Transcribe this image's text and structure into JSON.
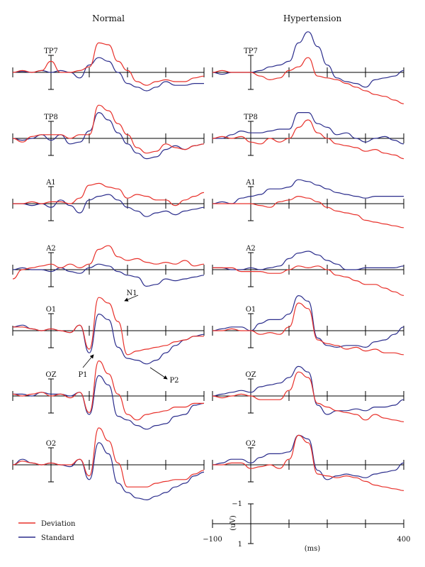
{
  "chart_data": {
    "type": "line",
    "panels": [
      {
        "title": "Normal"
      },
      {
        "title": "Hypertension"
      }
    ],
    "channels": [
      "TP7",
      "TP8",
      "A1",
      "A2",
      "O1",
      "OZ",
      "O2"
    ],
    "legend": {
      "position": "bottom-left",
      "entries": [
        {
          "label": "Deviation",
          "color": "#e8302a"
        },
        {
          "label": "Standard",
          "color": "#2b2d8c"
        }
      ]
    },
    "peak_annotations": [
      "N1",
      "P1",
      "P2"
    ],
    "scale_bar": {
      "xlabel": "(ms)",
      "ylabel": "(uV)",
      "x_min_label": "−100",
      "x_max_label": "400",
      "y_top_label": "−1",
      "y_bottom_label": "1",
      "xlim": [
        -100,
        400
      ],
      "ylim": [
        -1,
        1
      ]
    },
    "time_ms": [
      -100,
      -75,
      -50,
      -25,
      0,
      25,
      50,
      75,
      100,
      125,
      150,
      175,
      200,
      225,
      250,
      275,
      300,
      325,
      350,
      375,
      400
    ],
    "series": {
      "Normal": {
        "TP7": {
          "Deviation": [
            0,
            0.1,
            0,
            0.1,
            0.6,
            0,
            0,
            0.1,
            0.3,
            1.6,
            1.5,
            0.6,
            0.1,
            -0.5,
            -0.7,
            -0.5,
            -0.4,
            -0.5,
            -0.5,
            -0.3,
            -0.2
          ],
          "Standard": [
            0,
            0.05,
            0,
            0.1,
            0,
            0.1,
            0,
            -0.3,
            0.4,
            0.8,
            0.6,
            0,
            -0.6,
            -0.8,
            -1.0,
            -0.8,
            -0.5,
            -0.7,
            -0.7,
            -0.6,
            -0.6
          ]
        },
        "TP8": {
          "Deviation": [
            0,
            -0.2,
            0.1,
            0.2,
            0.2,
            0.2,
            0,
            0.2,
            0.2,
            1.8,
            1.5,
            0.8,
            0.2,
            -0.5,
            -0.8,
            -0.7,
            -0.3,
            -0.5,
            -0.6,
            -0.4,
            -0.3
          ],
          "Standard": [
            0,
            -0.1,
            0,
            0.2,
            -0.1,
            0.2,
            -0.3,
            -0.2,
            0.4,
            1.4,
            1.0,
            0.3,
            -0.3,
            -0.8,
            -1.1,
            -1.0,
            -0.6,
            -0.4,
            -0.6,
            -0.4,
            -0.3
          ]
        },
        "A1": {
          "Deviation": [
            0,
            0,
            0.1,
            0,
            0.1,
            0.1,
            0,
            0.3,
            1.0,
            1.1,
            0.9,
            0.8,
            0.3,
            0.5,
            0.4,
            0.2,
            0.2,
            -0.1,
            0.2,
            0.4,
            0.6
          ],
          "Standard": [
            0,
            0,
            -0.1,
            0,
            -0.2,
            0.2,
            -0.1,
            -0.5,
            0.2,
            0.4,
            0.5,
            0.2,
            -0.2,
            -0.4,
            -0.7,
            -0.5,
            -0.4,
            -0.6,
            -0.4,
            -0.3,
            -0.2
          ]
        },
        "A2": {
          "Deviation": [
            -0.5,
            0,
            0.1,
            0.2,
            0.3,
            0.1,
            0.3,
            0.1,
            0.3,
            1.1,
            1.3,
            0.7,
            0.5,
            0.6,
            0.4,
            0.3,
            0.4,
            0.3,
            0.5,
            0.2,
            0.3
          ],
          "Standard": [
            0,
            0.1,
            0,
            0,
            -0.1,
            0.1,
            -0.1,
            -0.2,
            0.1,
            0.3,
            0.2,
            -0.1,
            -0.3,
            -0.4,
            -0.9,
            -0.8,
            -0.5,
            -0.6,
            -0.5,
            -0.4,
            -0.3
          ]
        },
        "O1": {
          "Deviation": [
            0.2,
            0.2,
            0.1,
            0,
            0.1,
            0,
            -0.1,
            0.3,
            -1.0,
            1.8,
            1.5,
            0.5,
            -1.3,
            -1.1,
            -1.0,
            -0.9,
            -0.8,
            -0.6,
            -0.5,
            -0.3,
            -0.3
          ],
          "Standard": [
            0.2,
            0.3,
            0.1,
            0,
            0.1,
            0,
            -0.1,
            0.3,
            -1.2,
            0.9,
            0.6,
            -0.9,
            -1.5,
            -1.6,
            -1.8,
            -1.6,
            -1.2,
            -0.8,
            -0.5,
            -0.3,
            -0.2
          ]
        },
        "OZ": {
          "Deviation": [
            0.1,
            0,
            0.1,
            0.2,
            0,
            0.1,
            -0.1,
            0.2,
            -0.9,
            1.9,
            1.2,
            0.1,
            -1.0,
            -1.3,
            -1.0,
            -0.9,
            -0.8,
            -0.6,
            -0.6,
            -0.4,
            -0.4
          ],
          "Standard": [
            0.1,
            0.1,
            0,
            0.2,
            0.1,
            0.1,
            0,
            0.2,
            -1.0,
            1.1,
            0.6,
            -1.1,
            -1.3,
            -1.6,
            -1.8,
            -1.6,
            -1.5,
            -1.1,
            -1.0,
            -0.5,
            -0.4
          ]
        },
        "O2": {
          "Deviation": [
            0,
            0.2,
            0.1,
            0,
            0.1,
            0,
            0,
            0.3,
            -0.6,
            2.0,
            1.3,
            0.1,
            -1.2,
            -1.2,
            -1.2,
            -1.0,
            -0.9,
            -0.8,
            -0.8,
            -0.5,
            -0.3
          ],
          "Standard": [
            0,
            0.3,
            0.1,
            0,
            0.1,
            0,
            -0.1,
            0.3,
            -0.8,
            1.2,
            0.6,
            -1.0,
            -1.5,
            -1.8,
            -1.9,
            -1.7,
            -1.5,
            -1.2,
            -1.0,
            -0.6,
            -0.4
          ]
        }
      },
      "Hypertension": {
        "TP7": {
          "Deviation": [
            0,
            0.1,
            0,
            0,
            0,
            -0.2,
            -0.4,
            -0.3,
            0.1,
            0.3,
            0.8,
            -0.2,
            -0.3,
            -0.4,
            -0.6,
            -0.8,
            -1.0,
            -1.2,
            -1.3,
            -1.5,
            -1.7
          ],
          "Standard": [
            0,
            -0.1,
            0,
            0,
            0,
            0.1,
            0.3,
            0.4,
            0.6,
            1.6,
            2.2,
            1.4,
            0.4,
            -0.3,
            -0.5,
            -0.6,
            -0.8,
            -0.4,
            -0.3,
            -0.2,
            0.1
          ]
        },
        "TP8": {
          "Deviation": [
            0,
            0.1,
            0,
            0.1,
            -0.2,
            -0.3,
            0,
            -0.2,
            0,
            0.6,
            1.0,
            0.3,
            0,
            -0.3,
            -0.4,
            -0.5,
            -0.7,
            -0.6,
            -0.8,
            -0.9,
            -1.1
          ],
          "Standard": [
            0,
            0,
            0.2,
            0.4,
            0.3,
            0.3,
            0.4,
            0.5,
            0.5,
            1.4,
            1.4,
            0.8,
            0.6,
            0.2,
            0.3,
            0.0,
            -0.2,
            0.0,
            0.1,
            -0.1,
            -0.3
          ]
        },
        "A1": {
          "Deviation": [
            0,
            0,
            0,
            0,
            0,
            -0.1,
            -0.2,
            0.1,
            0.2,
            0.4,
            0.3,
            0.1,
            -0.2,
            -0.4,
            -0.5,
            -0.6,
            -0.9,
            -1.0,
            -1.1,
            -1.2,
            -1.3
          ],
          "Standard": [
            0,
            0.1,
            0,
            0.3,
            0.4,
            0.5,
            0.8,
            0.8,
            0.9,
            1.3,
            1.2,
            1.0,
            0.8,
            0.6,
            0.5,
            0.4,
            0.3,
            0.4,
            0.4,
            0.4,
            0.4
          ]
        },
        "A2": {
          "Deviation": [
            0.1,
            0.1,
            0.1,
            -0.1,
            -0.1,
            -0.1,
            -0.2,
            -0.2,
            0,
            0.2,
            0.1,
            0.2,
            0,
            -0.3,
            -0.4,
            -0.6,
            -0.8,
            -0.8,
            -1.0,
            -1.2,
            -1.4
          ],
          "Standard": [
            0.1,
            0.1,
            0,
            0,
            0.1,
            0,
            0.1,
            0.2,
            0.6,
            0.9,
            1.0,
            0.8,
            0.5,
            0.3,
            0.0,
            0.0,
            0.1,
            0.1,
            0.1,
            0.1,
            0.2
          ]
        },
        "O1": {
          "Deviation": [
            0,
            0,
            0.1,
            0,
            0,
            -0.2,
            -0.1,
            -0.2,
            0.2,
            1.5,
            1.2,
            -0.5,
            -0.7,
            -0.8,
            -1.0,
            -0.9,
            -1.1,
            -1.0,
            -1.2,
            -1.2,
            -1.3
          ],
          "Standard": [
            0,
            0.1,
            0.2,
            0.2,
            0,
            0.4,
            0.6,
            0.6,
            0.9,
            1.9,
            1.6,
            -0.4,
            -0.8,
            -0.9,
            -0.8,
            -0.8,
            -0.9,
            -0.6,
            -0.5,
            -0.2,
            0.2
          ]
        },
        "OZ": {
          "Deviation": [
            0,
            -0.1,
            0,
            0.1,
            0,
            -0.2,
            -0.2,
            -0.2,
            0.3,
            1.3,
            1.0,
            -0.4,
            -0.6,
            -0.8,
            -0.9,
            -1.0,
            -1.3,
            -1.0,
            -1.2,
            -1.3,
            -1.4
          ],
          "Standard": [
            0,
            0.1,
            0.2,
            0.3,
            0.2,
            0.5,
            0.6,
            0.7,
            1.0,
            1.6,
            1.3,
            -0.5,
            -1.0,
            -0.8,
            -0.8,
            -0.7,
            -0.8,
            -0.6,
            -0.6,
            -0.5,
            -0.2
          ]
        },
        "O2": {
          "Deviation": [
            0,
            0,
            0.1,
            0.1,
            -0.2,
            -0.1,
            0,
            -0.2,
            0.3,
            1.6,
            1.2,
            -0.5,
            -0.6,
            -0.7,
            -0.6,
            -0.7,
            -0.9,
            -1.1,
            -1.2,
            -1.3,
            -1.4
          ],
          "Standard": [
            0,
            0.1,
            0.3,
            0.3,
            0.1,
            0.4,
            0.6,
            0.6,
            0.7,
            1.6,
            1.4,
            -0.3,
            -0.8,
            -0.6,
            -0.5,
            -0.6,
            -0.7,
            -0.5,
            -0.4,
            -0.3,
            0.1
          ]
        }
      }
    }
  }
}
